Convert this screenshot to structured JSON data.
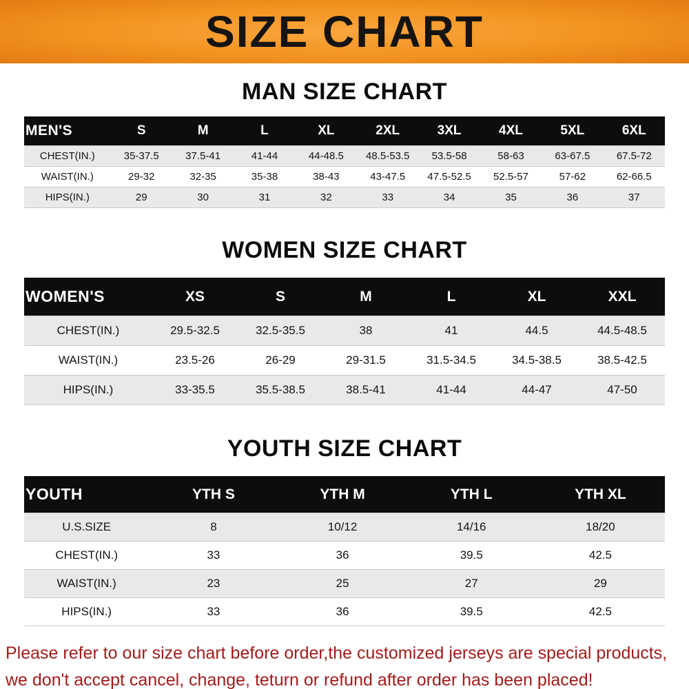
{
  "banner": {
    "title": "SIZE CHART",
    "bg_color": "#f3931f",
    "text_color": "#161413"
  },
  "chart_data": [
    {
      "type": "table",
      "title": "MAN SIZE CHART",
      "columns": [
        "MEN'S",
        "S",
        "M",
        "L",
        "XL",
        "2XL",
        "3XL",
        "4XL",
        "5XL",
        "6XL"
      ],
      "rows": [
        [
          "CHEST(IN.)",
          "35-37.5",
          "37.5-41",
          "41-44",
          "44-48.5",
          "48.5-53.5",
          "53.5-58",
          "58-63",
          "63-67.5",
          "67.5-72"
        ],
        [
          "WAIST(IN.)",
          "29-32",
          "32-35",
          "35-38",
          "38-43",
          "43-47.5",
          "47.5-52.5",
          "52.5-57",
          "57-62",
          "62-66.5"
        ],
        [
          "HIPS(IN.)",
          "29",
          "30",
          "31",
          "32",
          "33",
          "34",
          "35",
          "36",
          "37"
        ]
      ]
    },
    {
      "type": "table",
      "title": "WOMEN SIZE CHART",
      "columns": [
        "WOMEN'S",
        "XS",
        "S",
        "M",
        "L",
        "XL",
        "XXL"
      ],
      "rows": [
        [
          "CHEST(IN.)",
          "29.5-32.5",
          "32.5-35.5",
          "38",
          "41",
          "44.5",
          "44.5-48.5"
        ],
        [
          "WAIST(IN.)",
          "23.5-26",
          "26-29",
          "29-31.5",
          "31.5-34.5",
          "34.5-38.5",
          "38.5-42.5"
        ],
        [
          "HIPS(IN.)",
          "33-35.5",
          "35.5-38.5",
          "38.5-41",
          "41-44",
          "44-47",
          "47-50"
        ]
      ]
    },
    {
      "type": "table",
      "title": "YOUTH SIZE CHART",
      "columns": [
        "YOUTH",
        "YTH S",
        "YTH M",
        "YTH L",
        "YTH XL"
      ],
      "rows": [
        [
          "U.S.SIZE",
          "8",
          "10/12",
          "14/16",
          "18/20"
        ],
        [
          "CHEST(IN.)",
          "33",
          "36",
          "39.5",
          "42.5"
        ],
        [
          "WAIST(IN.)",
          "23",
          "25",
          "27",
          "29"
        ],
        [
          "HIPS(IN.)",
          "33",
          "36",
          "39.5",
          "42.5"
        ]
      ]
    }
  ],
  "footer": {
    "color": "#a21c1c",
    "lines": [
      "Please refer to our size chart before order,the customized jerseys are special products,",
      "we don't accept cancel, change, teturn or refund after order has been placed!"
    ]
  }
}
